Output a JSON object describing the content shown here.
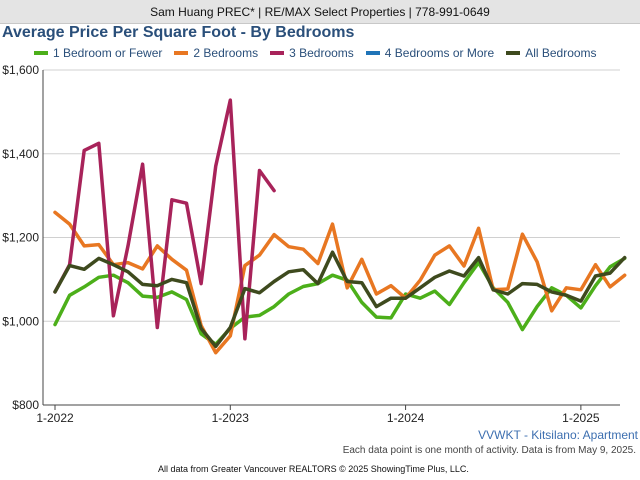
{
  "header": {
    "text": "Sam Huang PREC* | RE/MAX Select Properties | 778-991-0649"
  },
  "chart_data": {
    "type": "line",
    "title": "Average Price Per Square Foot - By Bedrooms",
    "x": [
      "2022-01",
      "2022-02",
      "2022-03",
      "2022-04",
      "2022-05",
      "2022-06",
      "2022-07",
      "2022-08",
      "2022-09",
      "2022-10",
      "2022-11",
      "2022-12",
      "2023-01",
      "2023-02",
      "2023-03",
      "2023-04",
      "2023-05",
      "2023-06",
      "2023-07",
      "2023-08",
      "2023-09",
      "2023-10",
      "2023-11",
      "2023-12",
      "2024-01",
      "2024-02",
      "2024-03",
      "2024-04",
      "2024-05",
      "2024-06",
      "2024-07",
      "2024-08",
      "2024-09",
      "2024-10",
      "2024-11",
      "2024-12",
      "2025-01",
      "2025-02",
      "2025-03",
      "2025-04"
    ],
    "xticks": [
      {
        "x": "2022-01",
        "label": "1-2022"
      },
      {
        "x": "2023-01",
        "label": "1-2023"
      },
      {
        "x": "2024-01",
        "label": "1-2024"
      },
      {
        "x": "2025-01",
        "label": "1-2025"
      }
    ],
    "ylim": [
      800,
      1600
    ],
    "yticks": [
      {
        "value": 800,
        "label": "$800"
      },
      {
        "value": 1000,
        "label": "$1,000"
      },
      {
        "value": 1200,
        "label": "$1,200"
      },
      {
        "value": 1400,
        "label": "$1,400"
      },
      {
        "value": 1600,
        "label": "$1,600"
      }
    ],
    "grid": true,
    "legend_position": "top",
    "series": [
      {
        "name": "1 Bedroom or Fewer",
        "color": "#4caf1a",
        "points": [
          [
            "2022-01",
            992
          ],
          [
            "2022-02",
            1062
          ],
          [
            "2022-03",
            1082
          ],
          [
            "2022-04",
            1105
          ],
          [
            "2022-05",
            1110
          ],
          [
            "2022-06",
            1092
          ],
          [
            "2022-07",
            1060
          ],
          [
            "2022-08",
            1057
          ],
          [
            "2022-09",
            1070
          ],
          [
            "2022-10",
            1052
          ],
          [
            "2022-11",
            970
          ],
          [
            "2022-12",
            945
          ],
          [
            "2023-01",
            983
          ],
          [
            "2023-02",
            1010
          ],
          [
            "2023-03",
            1014
          ],
          [
            "2023-04",
            1035
          ],
          [
            "2023-05",
            1065
          ],
          [
            "2023-06",
            1083
          ],
          [
            "2023-07",
            1090
          ],
          [
            "2023-08",
            1110
          ],
          [
            "2023-09",
            1098
          ],
          [
            "2023-10",
            1045
          ],
          [
            "2023-11",
            1010
          ],
          [
            "2023-12",
            1008
          ],
          [
            "2024-01",
            1065
          ],
          [
            "2024-02",
            1055
          ],
          [
            "2024-03",
            1072
          ],
          [
            "2024-04",
            1040
          ],
          [
            "2024-05",
            1092
          ],
          [
            "2024-06",
            1140
          ],
          [
            "2024-07",
            1080
          ],
          [
            "2024-08",
            1045
          ],
          [
            "2024-09",
            980
          ],
          [
            "2024-10",
            1035
          ],
          [
            "2024-11",
            1080
          ],
          [
            "2024-12",
            1062
          ],
          [
            "2025-01",
            1032
          ],
          [
            "2025-02",
            1085
          ],
          [
            "2025-03",
            1130
          ],
          [
            "2025-04",
            1150
          ]
        ]
      },
      {
        "name": "2 Bedrooms",
        "color": "#e87722",
        "points": [
          [
            "2022-01",
            1260
          ],
          [
            "2022-02",
            1232
          ],
          [
            "2022-03",
            1180
          ],
          [
            "2022-04",
            1183
          ],
          [
            "2022-05",
            1135
          ],
          [
            "2022-06",
            1140
          ],
          [
            "2022-07",
            1125
          ],
          [
            "2022-08",
            1180
          ],
          [
            "2022-09",
            1148
          ],
          [
            "2022-10",
            1122
          ],
          [
            "2022-11",
            990
          ],
          [
            "2022-12",
            925
          ],
          [
            "2023-01",
            965
          ],
          [
            "2023-02",
            1133
          ],
          [
            "2023-03",
            1158
          ],
          [
            "2023-04",
            1207
          ],
          [
            "2023-05",
            1178
          ],
          [
            "2023-06",
            1172
          ],
          [
            "2023-07",
            1138
          ],
          [
            "2023-08",
            1232
          ],
          [
            "2023-09",
            1080
          ],
          [
            "2023-10",
            1148
          ],
          [
            "2023-11",
            1065
          ],
          [
            "2023-12",
            1085
          ],
          [
            "2024-01",
            1055
          ],
          [
            "2024-02",
            1098
          ],
          [
            "2024-03",
            1158
          ],
          [
            "2024-04",
            1180
          ],
          [
            "2024-05",
            1132
          ],
          [
            "2024-06",
            1222
          ],
          [
            "2024-07",
            1075
          ],
          [
            "2024-08",
            1077
          ],
          [
            "2024-09",
            1208
          ],
          [
            "2024-10",
            1142
          ],
          [
            "2024-11",
            1025
          ],
          [
            "2024-12",
            1080
          ],
          [
            "2025-01",
            1075
          ],
          [
            "2025-02",
            1135
          ],
          [
            "2025-03",
            1082
          ],
          [
            "2025-04",
            1110
          ]
        ]
      },
      {
        "name": "3 Bedrooms",
        "color": "#a8235a",
        "points": [
          [
            "2022-01",
            1070
          ],
          [
            "2022-02",
            1135
          ],
          [
            "2022-03",
            1408
          ],
          [
            "2022-04",
            1425
          ],
          [
            "2022-05",
            1013
          ],
          [
            "2022-06",
            1180
          ],
          [
            "2022-07",
            1375
          ],
          [
            "2022-08",
            985
          ],
          [
            "2022-09",
            1290
          ],
          [
            "2022-10",
            1282
          ],
          [
            "2022-11",
            1090
          ],
          [
            "2022-12",
            1370
          ],
          [
            "2023-01",
            1528
          ],
          [
            "2023-02",
            958
          ],
          [
            "2023-03",
            1360
          ],
          [
            "2023-04",
            1312
          ]
        ]
      },
      {
        "name": "4 Bedrooms or More",
        "color": "#1f74b8",
        "points": []
      },
      {
        "name": "All Bedrooms",
        "color": "#3e4a1e",
        "points": [
          [
            "2022-01",
            1070
          ],
          [
            "2022-02",
            1133
          ],
          [
            "2022-03",
            1124
          ],
          [
            "2022-04",
            1150
          ],
          [
            "2022-05",
            1135
          ],
          [
            "2022-06",
            1118
          ],
          [
            "2022-07",
            1088
          ],
          [
            "2022-08",
            1085
          ],
          [
            "2022-09",
            1100
          ],
          [
            "2022-10",
            1092
          ],
          [
            "2022-11",
            983
          ],
          [
            "2022-12",
            940
          ],
          [
            "2023-01",
            985
          ],
          [
            "2023-02",
            1078
          ],
          [
            "2023-03",
            1068
          ],
          [
            "2023-04",
            1095
          ],
          [
            "2023-05",
            1118
          ],
          [
            "2023-06",
            1123
          ],
          [
            "2023-07",
            1090
          ],
          [
            "2023-08",
            1165
          ],
          [
            "2023-09",
            1095
          ],
          [
            "2023-10",
            1092
          ],
          [
            "2023-11",
            1035
          ],
          [
            "2023-12",
            1055
          ],
          [
            "2024-01",
            1055
          ],
          [
            "2024-02",
            1080
          ],
          [
            "2024-03",
            1105
          ],
          [
            "2024-04",
            1120
          ],
          [
            "2024-05",
            1108
          ],
          [
            "2024-06",
            1152
          ],
          [
            "2024-07",
            1075
          ],
          [
            "2024-08",
            1065
          ],
          [
            "2024-09",
            1090
          ],
          [
            "2024-10",
            1088
          ],
          [
            "2024-11",
            1070
          ],
          [
            "2024-12",
            1062
          ],
          [
            "2025-01",
            1048
          ],
          [
            "2025-02",
            1108
          ],
          [
            "2025-03",
            1115
          ],
          [
            "2025-04",
            1152
          ]
        ]
      }
    ]
  },
  "footer": {
    "code": "VVWKT - Kitsilano: Apartment",
    "activity_note": "Each data point is one month of activity. Data is from May 9, 2025.",
    "source": "All data from Greater Vancouver REALTORS © 2025 ShowingTime Plus, LLC."
  }
}
